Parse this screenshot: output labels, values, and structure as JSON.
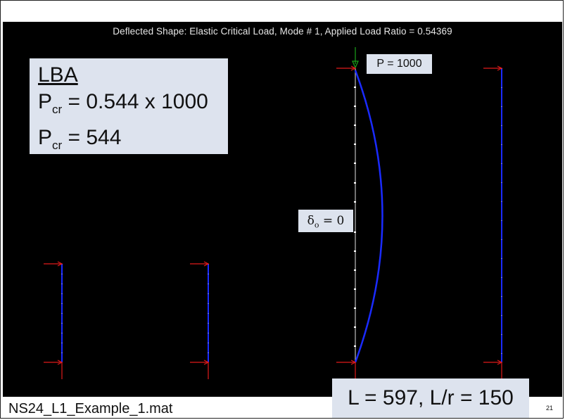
{
  "plot": {
    "title": "Deflected Shape:  Elastic Critical Load, Mode # 1, Applied Load Ratio = 0.54369"
  },
  "lba": {
    "heading": "LBA",
    "line1_prefix": "P",
    "line1_sub": "cr",
    "line1_value": " = 0.544 x 1000",
    "line2_prefix": "P",
    "line2_sub": "cr",
    "line2_value": " = 544"
  },
  "load_label": "P = 1000",
  "imperfection": {
    "symbol": "δ",
    "sub": "o",
    "value": " = 0"
  },
  "footer": {
    "file_name": "NS24_L1_Example_1.mat",
    "summary": "L = 597, L/r = 150",
    "slide_number": "21"
  },
  "colors": {
    "background": "#000000",
    "member": "#1a2bff",
    "support": "#e11a1a",
    "load_arrow": "#1aa31a",
    "undeformed": "#bfbfbf",
    "callout_fill": "#dde3ee"
  }
}
